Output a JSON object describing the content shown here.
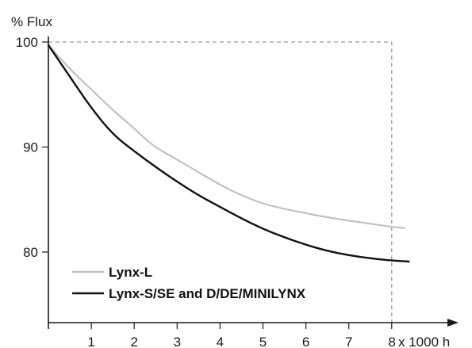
{
  "chart_data": {
    "type": "line",
    "ylabel": "% Flux",
    "xlabel_suffix": "x 1000 h",
    "x_ticks": [
      "1",
      "2",
      "3",
      "4",
      "5",
      "6",
      "7",
      "8"
    ],
    "y_ticks": [
      "100",
      "90",
      "80"
    ],
    "xlim": [
      0,
      9.2
    ],
    "ylim": [
      73.5,
      101
    ],
    "grid": false,
    "reference_box": {
      "x_max": 8,
      "y_max": 100,
      "style": "dashed"
    },
    "legend_position": "bottom-left",
    "series": [
      {
        "name": "Lynx-L",
        "color": "#c2c2c2",
        "x": [
          0,
          0.5,
          1,
          1.5,
          2,
          2.4,
          3,
          3.5,
          4,
          4.5,
          5,
          5.5,
          6,
          6.5,
          7,
          7.5,
          8,
          8.3
        ],
        "y": [
          99.7,
          97.4,
          95.5,
          93.5,
          91.8,
          90.2,
          88.8,
          87.6,
          86.4,
          85.4,
          84.6,
          84.1,
          83.7,
          83.3,
          83.0,
          82.7,
          82.4,
          82.3
        ]
      },
      {
        "name": "Lynx-S/SE and D/DE/MINILYNX",
        "color": "#111111",
        "x": [
          0,
          0.5,
          1,
          1.5,
          2,
          2.5,
          3,
          3.5,
          4,
          4.5,
          5,
          5.5,
          6,
          6.5,
          7,
          7.5,
          8,
          8.4
        ],
        "y": [
          99.7,
          96.7,
          93.7,
          91.2,
          89.6,
          88.1,
          86.7,
          85.4,
          84.3,
          83.2,
          82.2,
          81.4,
          80.7,
          80.1,
          79.7,
          79.4,
          79.2,
          79.1
        ]
      }
    ]
  }
}
